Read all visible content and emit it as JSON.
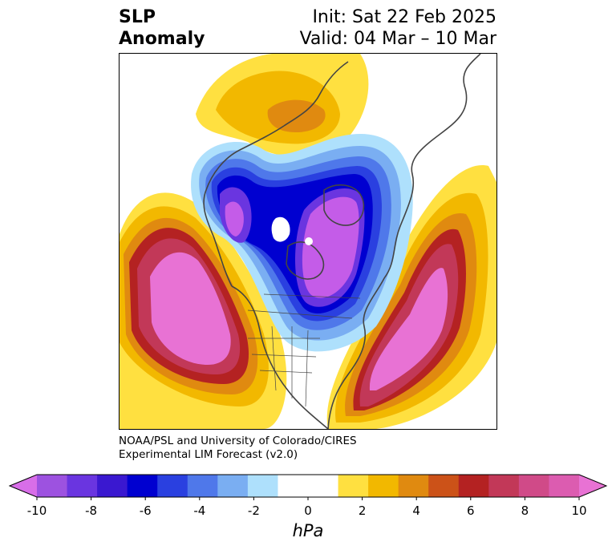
{
  "title": {
    "left_line1": "SLP",
    "left_line2": "Anomaly",
    "right_line1": "Init: Sat 22 Feb 2025",
    "right_line2": "Valid: 04 Mar – 10 Mar"
  },
  "credit": {
    "line1": "NOAA/PSL and University of Colorado/CIRES",
    "line2": "Experimental LIM Forecast (v2.0)"
  },
  "colorbar": {
    "unit_label": "hPa",
    "ticks": [
      "-10",
      "-8",
      "-6",
      "-4",
      "-2",
      "0",
      "2",
      "4",
      "6",
      "8",
      "10"
    ],
    "colors": [
      "#d86ee8",
      "#9d52e0",
      "#6a35e0",
      "#3a18d0",
      "#0000d0",
      "#2a40e0",
      "#4f78ea",
      "#7aaef2",
      "#aee0fc",
      "#ffffff",
      "#ffffff",
      "#ffe040",
      "#f2b800",
      "#e08a10",
      "#cc5218",
      "#b42222",
      "#c23858",
      "#d04a88",
      "#dc5cb0",
      "#e872d4"
    ]
  },
  "map": {
    "colors": {
      "neg_outer": "#aee0fc",
      "neg_2": "#7aaef2",
      "neg_3": "#4f78ea",
      "neg_4": "#2a40e0",
      "neg_5": "#0000d0",
      "neg_6": "#3a18d0",
      "neg_7": "#6a35e0",
      "neg_core": "#c45ce8",
      "pos_1": "#ffe040",
      "pos_2": "#f2b800",
      "pos_3": "#e08a10",
      "pos_4": "#cc5218",
      "pos_5": "#b42222",
      "pos_6": "#c23858",
      "pos_7": "#d04a88",
      "pos_core": "#e872d4",
      "coast": "#444444"
    }
  }
}
